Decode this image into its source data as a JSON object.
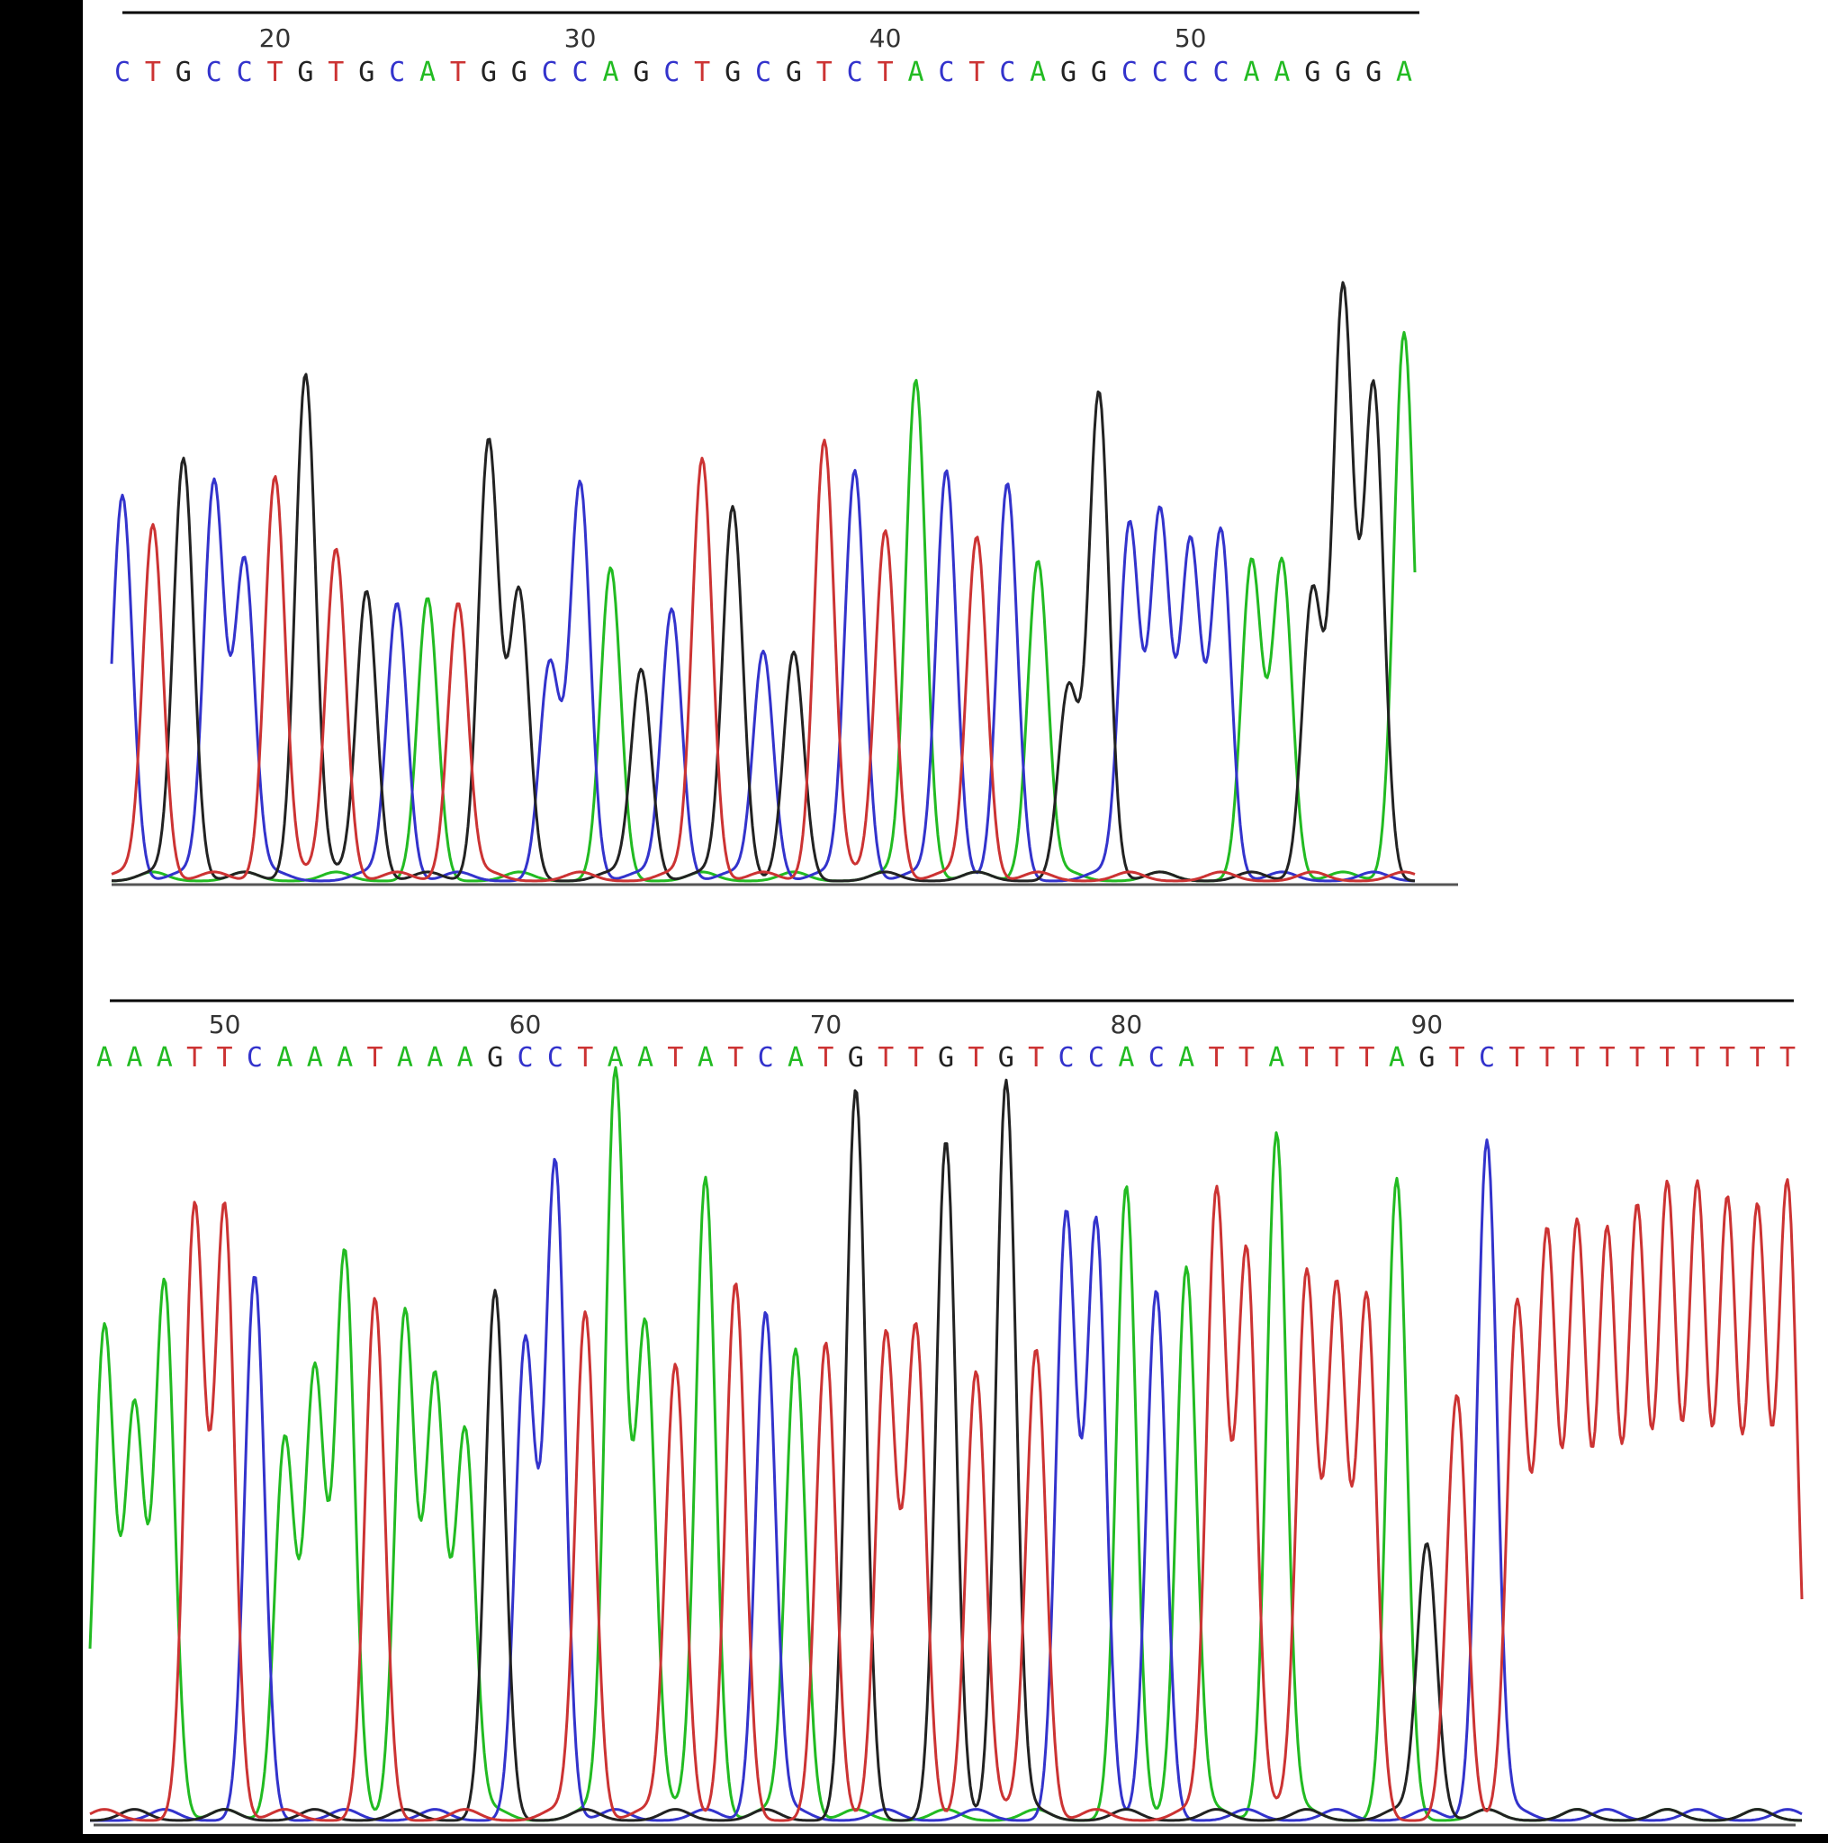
{
  "colors": {
    "A": "#22bb22",
    "C": "#3333cc",
    "G": "#222222",
    "T": "#cc3333",
    "background": "#ffffff",
    "frame": "#000000",
    "tick_text": "#333333"
  },
  "chart_data": [
    {
      "type": "line",
      "title": "",
      "xlabel": "",
      "ylabel": "",
      "x_ticks": [
        20,
        30,
        40,
        50
      ],
      "first_position": 15,
      "bases": "CTGCCTGTGCATGGCCAGCTGCGTCTACTCAGGCCCCAAGGGA",
      "peak_heights": [
        0.64,
        0.59,
        0.7,
        0.66,
        0.53,
        0.67,
        0.84,
        0.55,
        0.48,
        0.46,
        0.47,
        0.46,
        0.73,
        0.48,
        0.36,
        0.66,
        0.52,
        0.35,
        0.45,
        0.7,
        0.62,
        0.38,
        0.38,
        0.73,
        0.68,
        0.58,
        0.83,
        0.68,
        0.57,
        0.66,
        0.53,
        0.32,
        0.81,
        0.59,
        0.61,
        0.56,
        0.58,
        0.53,
        0.53,
        0.48,
        0.98,
        0.82,
        0.91
      ]
    },
    {
      "type": "line",
      "title": "",
      "xlabel": "",
      "ylabel": "",
      "x_ticks": [
        50,
        60,
        70,
        80,
        90
      ],
      "first_position": 46,
      "bases": "AAATTCAAATAAAGCCTAATATCATGTTGTGTCCACATTATTTAGTCTTTTTTTTTT",
      "peak_heights": [
        0.66,
        0.55,
        0.72,
        0.82,
        0.82,
        0.73,
        0.51,
        0.6,
        0.76,
        0.7,
        0.68,
        0.59,
        0.52,
        0.71,
        0.64,
        0.88,
        0.68,
        1.0,
        0.66,
        0.61,
        0.86,
        0.72,
        0.68,
        0.63,
        0.64,
        0.98,
        0.65,
        0.66,
        0.91,
        0.6,
        0.99,
        0.63,
        0.81,
        0.8,
        0.85,
        0.71,
        0.74,
        0.84,
        0.76,
        0.92,
        0.73,
        0.71,
        0.7,
        0.86,
        0.37,
        0.57,
        0.91,
        0.69,
        0.78,
        0.79,
        0.78,
        0.81,
        0.84,
        0.84,
        0.82,
        0.81,
        0.85
      ]
    }
  ]
}
